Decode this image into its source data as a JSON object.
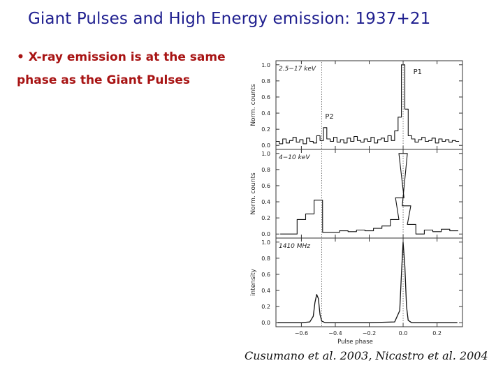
{
  "slide": {
    "title": "Giant Pulses and High Energy  emission: 1937+21",
    "bullet": "• X-ray emission is at the same phase as the Giant Pulses",
    "citation": "Cusumano et al. 2003, Nicastro et al. 2004"
  },
  "chart_data": [
    {
      "type": "line",
      "title": "",
      "panel_label": "2.5−17 keV",
      "ylabel": "Norm. counts",
      "xlabel": "",
      "xlim": [
        -0.75,
        0.35
      ],
      "ylim": [
        -0.05,
        1.05
      ],
      "yticks": [
        0.0,
        0.2,
        0.4,
        0.6,
        0.8,
        1.0
      ],
      "ytick_labels": [
        "0.0",
        "0.2",
        "0.4",
        "0.6",
        "0.8",
        "1.0"
      ],
      "annotations": [
        "P1",
        "P2"
      ],
      "style": "step",
      "series": [
        {
          "x": [
            -0.74,
            -0.72,
            -0.7,
            -0.68,
            -0.66,
            -0.64,
            -0.62,
            -0.6,
            -0.58,
            -0.56,
            -0.54,
            -0.52,
            -0.5,
            -0.48,
            -0.46,
            -0.44,
            -0.42,
            -0.4,
            -0.38,
            -0.36,
            -0.34,
            -0.32,
            -0.3,
            -0.28,
            -0.26,
            -0.24,
            -0.22,
            -0.2,
            -0.18,
            -0.16,
            -0.14,
            -0.12,
            -0.1,
            -0.08,
            -0.06,
            -0.04,
            -0.02,
            0.0,
            0.02,
            0.04,
            0.06,
            0.08,
            0.1,
            0.12,
            0.14,
            0.16,
            0.18,
            0.2,
            0.22,
            0.24,
            0.26,
            0.28,
            0.3,
            0.32
          ],
          "y": [
            0.05,
            0.02,
            0.08,
            0.03,
            0.06,
            0.1,
            0.04,
            0.07,
            0.02,
            0.09,
            0.05,
            0.03,
            0.12,
            0.06,
            0.22,
            0.08,
            0.05,
            0.1,
            0.04,
            0.07,
            0.03,
            0.09,
            0.05,
            0.11,
            0.06,
            0.04,
            0.08,
            0.05,
            0.1,
            0.03,
            0.07,
            0.09,
            0.05,
            0.12,
            0.06,
            0.18,
            0.35,
            1.0,
            0.45,
            0.12,
            0.08,
            0.04,
            0.07,
            0.1,
            0.05,
            0.06,
            0.09,
            0.03,
            0.08,
            0.05,
            0.07,
            0.04,
            0.06,
            0.05
          ]
        }
      ]
    },
    {
      "type": "line",
      "title": "",
      "panel_label": "4−10 keV",
      "ylabel": "Norm. counts",
      "xlabel": "",
      "xlim": [
        -0.75,
        0.35
      ],
      "ylim": [
        -0.05,
        1.05
      ],
      "yticks": [
        0.0,
        0.2,
        0.4,
        0.6,
        0.8,
        1.0
      ],
      "ytick_labels": [
        "0.0",
        "0.2",
        "0.4",
        "0.6",
        "0.8",
        "1.0"
      ],
      "style": "step",
      "series": [
        {
          "x": [
            -0.7,
            -0.65,
            -0.6,
            -0.55,
            -0.5,
            -0.45,
            -0.4,
            -0.35,
            -0.3,
            -0.25,
            -0.2,
            -0.15,
            -0.1,
            -0.05,
            -0.02,
            0.0,
            0.02,
            0.05,
            0.1,
            0.15,
            0.2,
            0.25,
            0.3
          ],
          "y": [
            0.0,
            0.0,
            0.18,
            0.25,
            0.42,
            0.02,
            0.02,
            0.04,
            0.03,
            0.05,
            0.04,
            0.07,
            0.1,
            0.18,
            0.45,
            1.0,
            0.35,
            0.12,
            0.0,
            0.05,
            0.03,
            0.06,
            0.04
          ]
        }
      ]
    },
    {
      "type": "line",
      "title": "",
      "panel_label": "1410 MHz",
      "ylabel": "intensity",
      "xlabel": "Pulse phase",
      "xlim": [
        -0.75,
        0.35
      ],
      "ylim": [
        -0.05,
        1.05
      ],
      "yticks": [
        0.0,
        0.2,
        0.4,
        0.6,
        0.8,
        1.0
      ],
      "ytick_labels": [
        "0.0",
        "0.2",
        "0.4",
        "0.6",
        "0.8",
        "1.0"
      ],
      "xticks": [
        -0.6,
        -0.4,
        -0.2,
        0.0,
        0.2
      ],
      "xtick_labels": [
        "−0.6",
        "−0.4",
        "−0.2",
        "0.0",
        "0.2"
      ],
      "style": "smooth",
      "series": [
        {
          "x": [
            -0.74,
            -0.6,
            -0.55,
            -0.53,
            -0.52,
            -0.51,
            -0.5,
            -0.49,
            -0.48,
            -0.46,
            -0.4,
            -0.2,
            -0.05,
            -0.02,
            -0.01,
            0.0,
            0.01,
            0.02,
            0.03,
            0.05,
            0.1,
            0.2,
            0.32
          ],
          "y": [
            0.0,
            0.0,
            0.01,
            0.08,
            0.25,
            0.35,
            0.3,
            0.1,
            0.02,
            0.0,
            0.0,
            0.0,
            0.01,
            0.15,
            0.6,
            1.0,
            0.7,
            0.2,
            0.03,
            0.0,
            0.0,
            0.0,
            0.0
          ]
        }
      ]
    }
  ]
}
